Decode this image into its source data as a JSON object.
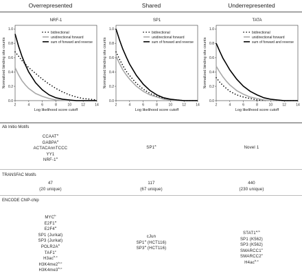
{
  "headers": [
    "Overrepresented",
    "Shared",
    "Underrepresented"
  ],
  "chart_data": [
    {
      "type": "line",
      "title": "NRF-1",
      "xlabel": "Log likelihood score cutoff",
      "ylabel": "Normalized binding site counts",
      "xlim": [
        2,
        14
      ],
      "ylim": [
        0,
        1.05
      ],
      "xticks": [
        2,
        4,
        6,
        8,
        10,
        12,
        14
      ],
      "yticks": [
        "0.0",
        "0.2",
        "0.4",
        "0.6",
        "0.8",
        "1.0"
      ],
      "legend_position": "top-right",
      "x": [
        2,
        2.5,
        3,
        3.5,
        4,
        5,
        6,
        7,
        8,
        9,
        10,
        11,
        12,
        13,
        14
      ],
      "series": [
        {
          "name": "bidirectional",
          "style": "dotted",
          "color": "#000000",
          "values": [
            0.68,
            0.62,
            0.56,
            0.51,
            0.46,
            0.38,
            0.3,
            0.23,
            0.17,
            0.12,
            0.08,
            0.05,
            0.03,
            0.02,
            0.01
          ]
        },
        {
          "name": "unidirectional forward",
          "style": "solid-gray",
          "color": "#a8a8a8",
          "values": [
            0.46,
            0.36,
            0.28,
            0.22,
            0.17,
            0.1,
            0.06,
            0.03,
            0.01,
            0.005,
            0.0,
            0.0,
            0.0,
            0.0,
            0.0
          ]
        },
        {
          "name": "sum of forward and reverse",
          "style": "solid-bold",
          "color": "#000000",
          "values": [
            0.93,
            0.76,
            0.62,
            0.5,
            0.4,
            0.25,
            0.15,
            0.08,
            0.04,
            0.02,
            0.01,
            0.0,
            0.0,
            0.0,
            0.0
          ]
        }
      ]
    },
    {
      "type": "line",
      "title": "SP1",
      "xlabel": "Log likelihood score cutoff",
      "ylabel": "Normalized binding site counts",
      "xlim": [
        2,
        14
      ],
      "ylim": [
        0,
        1.05
      ],
      "xticks": [
        2,
        4,
        6,
        8,
        10,
        12,
        14
      ],
      "yticks": [
        "0.0",
        "0.2",
        "0.4",
        "0.6",
        "0.8",
        "1.0"
      ],
      "legend_position": "top-right",
      "x": [
        2,
        2.5,
        3,
        3.5,
        4,
        5,
        6,
        7,
        8,
        9,
        10,
        11,
        12,
        13,
        14
      ],
      "series": [
        {
          "name": "bidirectional",
          "style": "dotted",
          "color": "#000000",
          "values": [
            0.68,
            0.58,
            0.49,
            0.41,
            0.35,
            0.24,
            0.16,
            0.1,
            0.06,
            0.03,
            0.02,
            0.01,
            0.0,
            0.0,
            0.0
          ]
        },
        {
          "name": "unidirectional forward",
          "style": "solid-gray",
          "color": "#a8a8a8",
          "values": [
            0.62,
            0.52,
            0.43,
            0.36,
            0.3,
            0.2,
            0.13,
            0.08,
            0.05,
            0.02,
            0.01,
            0.0,
            0.0,
            0.0,
            0.0
          ]
        },
        {
          "name": "sum of forward and reverse",
          "style": "solid-bold",
          "color": "#000000",
          "values": [
            1.0,
            0.85,
            0.72,
            0.61,
            0.51,
            0.35,
            0.23,
            0.14,
            0.08,
            0.04,
            0.02,
            0.01,
            0.0,
            0.0,
            0.0
          ]
        }
      ]
    },
    {
      "type": "line",
      "title": "TATA",
      "xlabel": "Log likelihood score cutoff",
      "ylabel": "Normalized binding site counts",
      "xlim": [
        2,
        14
      ],
      "ylim": [
        0,
        1.05
      ],
      "xticks": [
        2,
        4,
        6,
        8,
        10,
        12,
        14
      ],
      "yticks": [
        "0.0",
        "0.2",
        "0.4",
        "0.6",
        "0.8",
        "1.0"
      ],
      "legend_position": "top-right",
      "x": [
        2,
        2.5,
        3,
        3.5,
        4,
        5,
        6,
        7,
        8,
        9,
        10,
        11,
        12,
        13,
        14
      ],
      "series": [
        {
          "name": "bidirectional",
          "style": "dotted",
          "color": "#000000",
          "values": [
            0.32,
            0.26,
            0.21,
            0.17,
            0.13,
            0.08,
            0.05,
            0.03,
            0.01,
            0.005,
            0.0,
            0.0,
            0.0,
            0.0,
            0.0
          ]
        },
        {
          "name": "unidirectional forward",
          "style": "solid-gray",
          "color": "#a8a8a8",
          "values": [
            0.48,
            0.4,
            0.33,
            0.27,
            0.22,
            0.14,
            0.09,
            0.05,
            0.03,
            0.01,
            0.0,
            0.0,
            0.0,
            0.0,
            0.0
          ]
        },
        {
          "name": "sum of forward and reverse",
          "style": "solid-bold",
          "color": "#000000",
          "values": [
            0.8,
            0.69,
            0.59,
            0.51,
            0.43,
            0.3,
            0.2,
            0.13,
            0.08,
            0.04,
            0.02,
            0.01,
            0.0,
            0.0,
            0.0
          ]
        }
      ]
    }
  ],
  "sections": {
    "ab_initio": {
      "label": "Ab Initio Motifs",
      "over": [
        {
          "text": "CCAAT",
          "sup": "a"
        },
        {
          "text": "GABPA",
          "sup": "a"
        },
        {
          "text": "ACTACAnnTCCC",
          "sup": ""
        },
        {
          "text": "YY1",
          "sup": ""
        },
        {
          "text": "NRF-1",
          "sup": "a"
        }
      ],
      "shared": [
        {
          "text": "SP1",
          "sup": "a"
        }
      ],
      "under": [
        {
          "text": "Novel 1",
          "sup": ""
        }
      ]
    },
    "transfac": {
      "label": "TRANSFAC Motifs",
      "over": [
        {
          "text": "47",
          "sup": ""
        },
        {
          "text": "(20 unique)",
          "sup": ""
        }
      ],
      "shared": [
        {
          "text": "117",
          "sup": ""
        },
        {
          "text": "(67 unique)",
          "sup": ""
        }
      ],
      "under": [
        {
          "text": "440",
          "sup": ""
        },
        {
          "text": "(230 unique)",
          "sup": ""
        }
      ]
    },
    "encode": {
      "label": "ENCODE ChIP-chip",
      "over": [
        {
          "text": "MYC",
          "sup": "b"
        },
        {
          "text": "E2F1",
          "sup": "a"
        },
        {
          "text": "E2F4",
          "sup": "a"
        },
        {
          "text": "SP1 (Jurkat)",
          "sup": ""
        },
        {
          "text": "SP3 (Jurkat)",
          "sup": ""
        },
        {
          "text": "POLR2A",
          "sup": "b"
        },
        {
          "text": "TAF1",
          "sup": "c"
        },
        {
          "text": "H3ac",
          "sup": "b,c"
        },
        {
          "text": "H3K4me2",
          "sup": "b,c"
        },
        {
          "text": "H3K4me3",
          "sup": "b,c"
        }
      ],
      "shared": [
        {
          "text": "cJun",
          "sup": ""
        },
        {
          "text": "SP1",
          "sup": "a",
          "suffix": " (HCT116)"
        },
        {
          "text": "SP3",
          "sup": "a",
          "suffix": " (HCT116)"
        }
      ],
      "under": [
        {
          "text": "STAT1",
          "sup": "a,b"
        },
        {
          "text": "SP1 (K562)",
          "sup": ""
        },
        {
          "text": "SP3 (K562)",
          "sup": ""
        },
        {
          "text": "SMARCC1",
          "sup": "c"
        },
        {
          "text": "SMARCC2",
          "sup": "c"
        },
        {
          "text": "H4ac",
          "sup": "b,c"
        }
      ]
    }
  }
}
